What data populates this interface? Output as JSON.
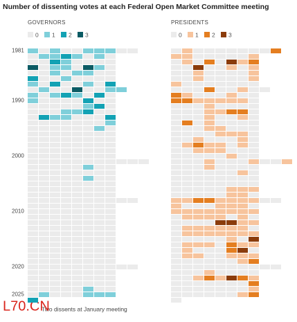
{
  "watermark": "L70.CN",
  "chart_data": [
    {
      "type": "heatmap",
      "title": "Number of dissenting votes at each Federal Open Market Committee meeting",
      "subtitle": "GOVERNORS",
      "footnote": "Two dissents at January meeting",
      "levels": [
        0,
        1,
        2,
        3
      ],
      "colors": [
        "#ebebeb",
        "#7fcfda",
        "#13a2b4",
        "#0b5b64"
      ],
      "categories": [
        "1981",
        null,
        null,
        null,
        null,
        null,
        null,
        null,
        null,
        "1990",
        null,
        null,
        null,
        null,
        null,
        null,
        null,
        null,
        null,
        "2000",
        null,
        null,
        null,
        null,
        null,
        null,
        null,
        null,
        null,
        "2010",
        null,
        null,
        null,
        null,
        null,
        null,
        null,
        null,
        null,
        "2020",
        null,
        null,
        null,
        null,
        "2025",
        null
      ],
      "values": [
        [
          1,
          0,
          1,
          0,
          0,
          1,
          1,
          1,
          0,
          0
        ],
        [
          0,
          1,
          1,
          2,
          1,
          0,
          1,
          0
        ],
        [
          0,
          0,
          2,
          1,
          0,
          0,
          0,
          0
        ],
        [
          3,
          0,
          1,
          1,
          0,
          3,
          1,
          0
        ],
        [
          0,
          0,
          1,
          0,
          1,
          1,
          0,
          0
        ],
        [
          2,
          0,
          0,
          1,
          0,
          0,
          0,
          0
        ],
        [
          1,
          0,
          2,
          0,
          0,
          1,
          0,
          2
        ],
        [
          0,
          1,
          0,
          0,
          3,
          0,
          0,
          1,
          1
        ],
        [
          1,
          0,
          1,
          2,
          1,
          0,
          2,
          0
        ],
        [
          1,
          0,
          0,
          0,
          0,
          2,
          0,
          0
        ],
        [
          0,
          0,
          0,
          0,
          0,
          1,
          2,
          0
        ],
        [
          0,
          0,
          0,
          1,
          1,
          2,
          0,
          0
        ],
        [
          0,
          2,
          1,
          1,
          0,
          0,
          0,
          2
        ],
        [
          0,
          0,
          0,
          0,
          0,
          0,
          0,
          1
        ],
        [
          0,
          0,
          0,
          0,
          0,
          0,
          1,
          0
        ],
        [
          0,
          0,
          0,
          0,
          0,
          0,
          0,
          0
        ],
        [
          0,
          0,
          0,
          0,
          0,
          0,
          0,
          0
        ],
        [
          0,
          0,
          0,
          0,
          0,
          0,
          0,
          0
        ],
        [
          0,
          0,
          0,
          0,
          0,
          0,
          0,
          0
        ],
        [
          0,
          0,
          0,
          0,
          0,
          0,
          0,
          0
        ],
        [
          0,
          0,
          0,
          0,
          0,
          0,
          0,
          0,
          0,
          0,
          0
        ],
        [
          0,
          0,
          0,
          0,
          0,
          1,
          0,
          0
        ],
        [
          0,
          0,
          0,
          0,
          0,
          0,
          0,
          0
        ],
        [
          0,
          0,
          0,
          0,
          0,
          1,
          0,
          0
        ],
        [
          0,
          0,
          0,
          0,
          0,
          0,
          0,
          0
        ],
        [
          0,
          0,
          0,
          0,
          0,
          0,
          0,
          0
        ],
        [
          0,
          0,
          0,
          0,
          0,
          0,
          0,
          0
        ],
        [
          0,
          0,
          0,
          0,
          0,
          0,
          0,
          0,
          0,
          0
        ],
        [
          0,
          0,
          0,
          0,
          0,
          0,
          0,
          0
        ],
        [
          0,
          0,
          0,
          0,
          0,
          0,
          0,
          0
        ],
        [
          0,
          0,
          0,
          0,
          0,
          0,
          0,
          0
        ],
        [
          0,
          0,
          0,
          0,
          0,
          0,
          0,
          0
        ],
        [
          0,
          0,
          0,
          0,
          0,
          0,
          0,
          0
        ],
        [
          0,
          0,
          0,
          0,
          0,
          0,
          0,
          0
        ],
        [
          0,
          0,
          0,
          0,
          0,
          0,
          0,
          0
        ],
        [
          0,
          0,
          0,
          0,
          0,
          0,
          0,
          0
        ],
        [
          0,
          0,
          0,
          0,
          0,
          0,
          0,
          0
        ],
        [
          0,
          0,
          0,
          0,
          0,
          0,
          0,
          0
        ],
        [
          0,
          0,
          0,
          0,
          0,
          0,
          0,
          0
        ],
        [
          0,
          0,
          0,
          0,
          0,
          0,
          0,
          0,
          0,
          0
        ],
        [
          0,
          0,
          0,
          0,
          0,
          0,
          0,
          0
        ],
        [
          0,
          0,
          0,
          0,
          0,
          0,
          0,
          0
        ],
        [
          0,
          0,
          0,
          0,
          0,
          0,
          0,
          0
        ],
        [
          0,
          0,
          0,
          0,
          0,
          1,
          0,
          0
        ],
        [
          0,
          1,
          0,
          0,
          0,
          1,
          1,
          1
        ],
        [
          2
        ]
      ]
    },
    {
      "type": "heatmap",
      "subtitle": "PRESIDENTS",
      "levels": [
        0,
        1,
        2,
        3
      ],
      "colors": [
        "#ebebeb",
        "#f7c49d",
        "#e47e20",
        "#8b3c0b"
      ],
      "values": [
        [
          0,
          1,
          0,
          0,
          0,
          0,
          0,
          0,
          0,
          2
        ],
        [
          1,
          1,
          0,
          0,
          0,
          0,
          0,
          1
        ],
        [
          0,
          1,
          0,
          2,
          0,
          3,
          1,
          2
        ],
        [
          0,
          0,
          3,
          0,
          0,
          1,
          0,
          1
        ],
        [
          0,
          0,
          1,
          0,
          0,
          0,
          0,
          1
        ],
        [
          0,
          0,
          1,
          0,
          0,
          0,
          0,
          1
        ],
        [
          1,
          0,
          0,
          0,
          0,
          0,
          0,
          0
        ],
        [
          0,
          0,
          0,
          2,
          0,
          0,
          1,
          0,
          0
        ],
        [
          2,
          1,
          0,
          0,
          0,
          1,
          0,
          0
        ],
        [
          2,
          2,
          1,
          1,
          1,
          1,
          1,
          0
        ],
        [
          0,
          0,
          0,
          1,
          0,
          0,
          0,
          0
        ],
        [
          0,
          0,
          0,
          1,
          1,
          2,
          2,
          0
        ],
        [
          0,
          0,
          0,
          1,
          0,
          0,
          1,
          0
        ],
        [
          0,
          2,
          0,
          1,
          0,
          0,
          0,
          0
        ],
        [
          0,
          0,
          0,
          1,
          1,
          0,
          0,
          0
        ],
        [
          0,
          0,
          0,
          0,
          1,
          1,
          1,
          0
        ],
        [
          0,
          0,
          1,
          0,
          0,
          0,
          1,
          0
        ],
        [
          0,
          1,
          2,
          1,
          1,
          0,
          1,
          0
        ],
        [
          0,
          0,
          1,
          1,
          1,
          0,
          0,
          0
        ],
        [
          0,
          0,
          0,
          0,
          0,
          1,
          0,
          0
        ],
        [
          0,
          0,
          0,
          1,
          0,
          0,
          0,
          1,
          0,
          0,
          1
        ],
        [
          0,
          0,
          0,
          1,
          0,
          0,
          0,
          0
        ],
        [
          0,
          0,
          0,
          0,
          0,
          0,
          1,
          0
        ],
        [
          0,
          0,
          0,
          0,
          0,
          0,
          0,
          0
        ],
        [
          0,
          0,
          0,
          0,
          0,
          0,
          0,
          0
        ],
        [
          0,
          0,
          0,
          0,
          0,
          1,
          1,
          1
        ],
        [
          0,
          0,
          0,
          0,
          0,
          1,
          1,
          0
        ],
        [
          1,
          1,
          2,
          2,
          1,
          1,
          1,
          1,
          0,
          0
        ],
        [
          1,
          0,
          0,
          0,
          1,
          1,
          1,
          0
        ],
        [
          1,
          1,
          1,
          1,
          1,
          1,
          1,
          1
        ],
        [
          0,
          1,
          1,
          1,
          1,
          0,
          1,
          0
        ],
        [
          0,
          0,
          0,
          0,
          3,
          3,
          1,
          1
        ],
        [
          0,
          1,
          1,
          1,
          1,
          1,
          1,
          0
        ],
        [
          0,
          1,
          1,
          1,
          1,
          1,
          1,
          1
        ],
        [
          0,
          0,
          0,
          0,
          0,
          1,
          0,
          3
        ],
        [
          0,
          1,
          1,
          1,
          0,
          2,
          1,
          1
        ],
        [
          0,
          1,
          0,
          0,
          0,
          2,
          3,
          0
        ],
        [
          0,
          1,
          1,
          0,
          0,
          1,
          1,
          1
        ],
        [
          0,
          0,
          0,
          0,
          0,
          0,
          1,
          2
        ],
        [
          0,
          0,
          0,
          0,
          0,
          0,
          0,
          0,
          0,
          0
        ],
        [
          0,
          0,
          0,
          1,
          0,
          0,
          0,
          0
        ],
        [
          0,
          0,
          1,
          2,
          1,
          3,
          2,
          1
        ],
        [
          0,
          0,
          0,
          0,
          0,
          0,
          0,
          2
        ],
        [
          0,
          0,
          0,
          0,
          0,
          0,
          0,
          1
        ],
        [
          0,
          0,
          0,
          0,
          0,
          0,
          1,
          2
        ],
        [
          0
        ]
      ]
    }
  ]
}
